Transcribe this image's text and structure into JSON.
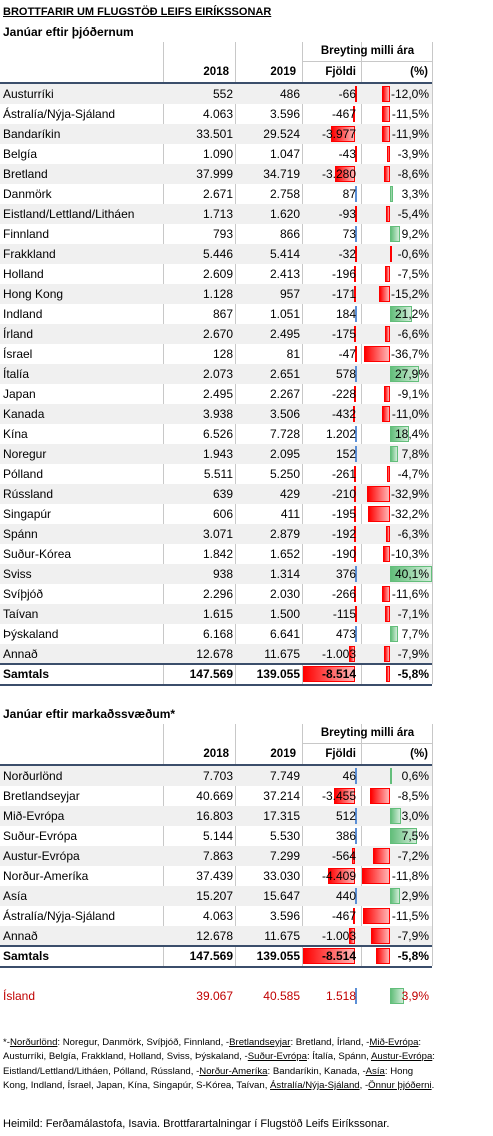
{
  "title": "BROTTFARIR UM FLUGSTÖÐ LEIFS EIRÍKSSONAR",
  "colors": {
    "negative": "#ff0000",
    "positive_count": "#5b8fd6",
    "positive_pct": "#63be7b",
    "row_shade": "#f0f0f0",
    "rule": "#3b4e6b",
    "iceland": "#c00000"
  },
  "tables": [
    {
      "title": "Janúar eftir þjóðernum",
      "group_header": "Breyting milli ára",
      "columns": [
        "2018",
        "2019",
        "Fjöldi",
        "(%)"
      ],
      "rows": [
        [
          "Austurríki",
          "552",
          "486",
          "-66",
          "-12,0%"
        ],
        [
          "Ástralía/Nýja-Sjáland",
          "4.063",
          "3.596",
          "-467",
          "-11,5%"
        ],
        [
          "Bandaríkin",
          "33.501",
          "29.524",
          "-3.977",
          "-11,9%"
        ],
        [
          "Belgía",
          "1.090",
          "1.047",
          "-43",
          "-3,9%"
        ],
        [
          "Bretland",
          "37.999",
          "34.719",
          "-3.280",
          "-8,6%"
        ],
        [
          "Danmörk",
          "2.671",
          "2.758",
          "87",
          "3,3%"
        ],
        [
          "Eistland/Lettland/Litháen",
          "1.713",
          "1.620",
          "-93",
          "-5,4%"
        ],
        [
          "Finnland",
          "793",
          "866",
          "73",
          "9,2%"
        ],
        [
          "Frakkland",
          "5.446",
          "5.414",
          "-32",
          "-0,6%"
        ],
        [
          "Holland",
          "2.609",
          "2.413",
          "-196",
          "-7,5%"
        ],
        [
          "Hong Kong",
          "1.128",
          "957",
          "-171",
          "-15,2%"
        ],
        [
          "Indland",
          "867",
          "1.051",
          "184",
          "21,2%"
        ],
        [
          "Írland",
          "2.670",
          "2.495",
          "-175",
          "-6,6%"
        ],
        [
          "Ísrael",
          "128",
          "81",
          "-47",
          "-36,7%"
        ],
        [
          "Ítalía",
          "2.073",
          "2.651",
          "578",
          "27,9%"
        ],
        [
          "Japan",
          "2.495",
          "2.267",
          "-228",
          "-9,1%"
        ],
        [
          "Kanada",
          "3.938",
          "3.506",
          "-432",
          "-11,0%"
        ],
        [
          "Kína",
          "6.526",
          "7.728",
          "1.202",
          "18,4%"
        ],
        [
          "Noregur",
          "1.943",
          "2.095",
          "152",
          "7,8%"
        ],
        [
          "Pólland",
          "5.511",
          "5.250",
          "-261",
          "-4,7%"
        ],
        [
          "Rússland",
          "639",
          "429",
          "-210",
          "-32,9%"
        ],
        [
          "Singapúr",
          "606",
          "411",
          "-195",
          "-32,2%"
        ],
        [
          "Spánn",
          "3.071",
          "2.879",
          "-192",
          "-6,3%"
        ],
        [
          "Suður-Kórea",
          "1.842",
          "1.652",
          "-190",
          "-10,3%"
        ],
        [
          "Sviss",
          "938",
          "1.314",
          "376",
          "40,1%"
        ],
        [
          "Svíþjóð",
          "2.296",
          "2.030",
          "-266",
          "-11,6%"
        ],
        [
          "Taívan",
          "1.615",
          "1.500",
          "-115",
          "-7,1%"
        ],
        [
          "Þýskaland",
          "6.168",
          "6.641",
          "473",
          "7,7%"
        ],
        [
          "Annað",
          "12.678",
          "11.675",
          "-1.003",
          "-7,9%"
        ],
        [
          "Samtals",
          "147.569",
          "139.055",
          "-8.514",
          "-5,8%"
        ]
      ]
    },
    {
      "title": "Janúar eftir markaðssvæðum*",
      "group_header": "Breyting milli ára",
      "columns": [
        "2018",
        "2019",
        "Fjöldi",
        "(%)"
      ],
      "rows": [
        [
          "Norðurlönd",
          "7.703",
          "7.749",
          "46",
          "0,6%"
        ],
        [
          "Bretlandseyjar",
          "40.669",
          "37.214",
          "-3.455",
          "-8,5%"
        ],
        [
          "Mið-Evrópa",
          "16.803",
          "17.315",
          "512",
          "3,0%"
        ],
        [
          "Suður-Evrópa",
          "5.144",
          "5.530",
          "386",
          "7,5%"
        ],
        [
          "Austur-Evrópa",
          "7.863",
          "7.299",
          "-564",
          "-7,2%"
        ],
        [
          "Norður-Ameríka",
          "37.439",
          "33.030",
          "-4.409",
          "-11,8%"
        ],
        [
          "Asía",
          "15.207",
          "15.647",
          "440",
          "2,9%"
        ],
        [
          "Ástralía/Nýja-Sjáland",
          "4.063",
          "3.596",
          "-467",
          "-11,5%"
        ],
        [
          "Annað",
          "12.678",
          "11.675",
          "-1.003",
          "-7,9%"
        ],
        [
          "Samtals",
          "147.569",
          "139.055",
          "-8.514",
          "-5,8%"
        ]
      ]
    }
  ],
  "iceland": [
    "Ísland",
    "39.067",
    "40.585",
    "1.518",
    "3,9%"
  ],
  "footnote": [
    "*-",
    "Norðurlönd",
    ": Noregur, Danmörk, Svíþjóð, Finnland, -",
    "Bretlandseyjar",
    ": Bretland, Írland, -",
    "Mið-Evrópa",
    ": Austurríki, Belgía, Frakkland, Holland, Sviss, Þýskaland, -",
    "Suður-Evrópa",
    ": Ítalía, Spánn, ",
    "Austur-Evrópa",
    ": Eistland/Lettland/Litháen, Pólland, Rússland, -",
    "Norður-Ameríka",
    ": Bandaríkin, Kanada, -",
    "Asía",
    ": Hong Kong, Indland, Ísrael, Japan, Kína, Singapúr, S-Kórea, Taívan, ",
    "Ástralía/Nýja-Sjáland",
    ", -",
    "Önnur þjóðerni",
    "."
  ],
  "source": "Heimild: Ferðamálastofa, Isavia. Brottfarartalningar í Flugstöð Leifs Eiríkssonar."
}
